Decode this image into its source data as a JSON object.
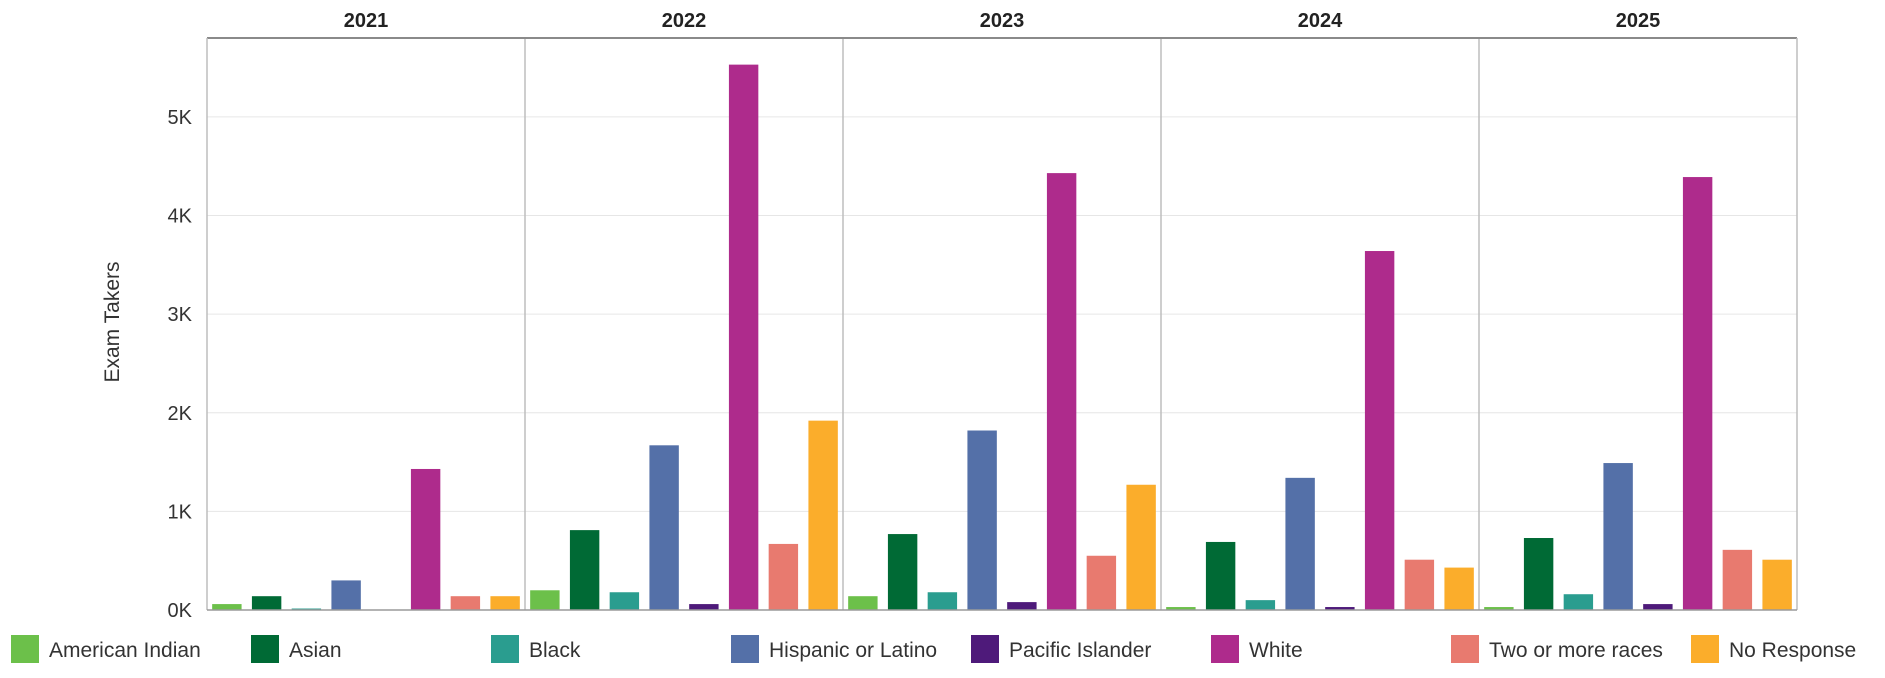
{
  "chart_data": {
    "type": "bar",
    "ylabel": "Exam Takers",
    "ylim": [
      0,
      5800
    ],
    "y_ticks": [
      0,
      1000,
      2000,
      3000,
      4000,
      5000
    ],
    "y_tick_labels": [
      "0K",
      "1K",
      "2K",
      "3K",
      "4K",
      "5K"
    ],
    "grid": true,
    "legend_position": "bottom",
    "panels": [
      "2021",
      "2022",
      "2023",
      "2024",
      "2025"
    ],
    "series": [
      {
        "name": "American Indian",
        "color": "#6cc04a",
        "values": [
          60,
          200,
          140,
          30,
          30
        ]
      },
      {
        "name": "Asian",
        "color": "#006a35",
        "values": [
          140,
          810,
          770,
          690,
          730
        ]
      },
      {
        "name": "Black",
        "color": "#2a9d8f",
        "values": [
          15,
          180,
          180,
          100,
          160
        ]
      },
      {
        "name": "Hispanic or Latino",
        "color": "#5470a8",
        "values": [
          300,
          1670,
          1820,
          1340,
          1490
        ]
      },
      {
        "name": "Pacific Islander",
        "color": "#4e1a7a",
        "values": [
          0,
          60,
          80,
          30,
          60
        ]
      },
      {
        "name": "White",
        "color": "#ae2b8c",
        "values": [
          1430,
          5530,
          4430,
          3640,
          4390
        ]
      },
      {
        "name": "Two or more races",
        "color": "#e87a6f",
        "values": [
          140,
          670,
          550,
          510,
          610
        ]
      },
      {
        "name": "No Response",
        "color": "#fbad2b",
        "values": [
          140,
          1920,
          1270,
          430,
          510
        ]
      }
    ]
  }
}
